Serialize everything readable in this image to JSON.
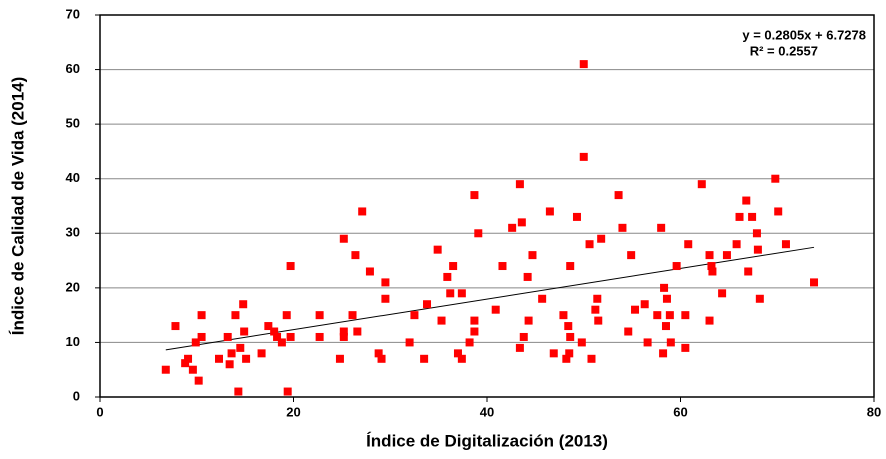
{
  "chart_data": {
    "type": "scatter",
    "xlabel": "Índice de Digitalización (2013)",
    "ylabel": "Índice de Calidad de Vida (2014)",
    "xlim": [
      0,
      80
    ],
    "xticks": [
      0,
      20,
      40,
      60,
      80
    ],
    "ylim": [
      0,
      70
    ],
    "yticks": [
      0,
      10,
      20,
      30,
      40,
      50,
      60,
      70
    ],
    "grid": true,
    "color": "#ff0000",
    "trendline": {
      "equation": "y = 0.2805x + 6.7278",
      "r2": "R² = 0.2557",
      "slope": 0.2805,
      "intercept": 6.7278
    },
    "x": [
      6.8,
      7.8,
      8.8,
      9.1,
      9.6,
      9.9,
      10.2,
      10.5,
      10.5,
      12.3,
      13.2,
      13.4,
      13.6,
      14,
      14.3,
      14.5,
      14.8,
      14.9,
      15.1,
      16.7,
      17.4,
      18,
      18.3,
      18.8,
      19.3,
      19.4,
      19.7,
      19.7,
      22.7,
      22.7,
      24.8,
      25.2,
      25.2,
      25.2,
      26.1,
      26.4,
      26.6,
      27.1,
      27.9,
      28.8,
      29.1,
      29.5,
      29.5,
      32,
      32.5,
      33.5,
      33.8,
      34.9,
      35.3,
      35.9,
      36.2,
      36.5,
      37,
      37.4,
      37.4,
      38.2,
      38.7,
      38.7,
      38.7,
      39.1,
      40.9,
      41.6,
      42.6,
      43.4,
      43.4,
      43.6,
      43.8,
      44.2,
      44.3,
      44.7,
      45.7,
      46.5,
      46.9,
      47.9,
      48.2,
      48.4,
      48.5,
      48.6,
      48.6,
      49.3,
      49.8,
      50,
      50,
      50.6,
      50.8,
      51.2,
      51.4,
      51.5,
      51.8,
      53.6,
      54,
      54.6,
      54.9,
      55.3,
      56.3,
      56.6,
      57.6,
      58,
      58.2,
      58.3,
      58.5,
      58.6,
      58.9,
      59,
      59.6,
      60.5,
      60.5,
      60.8,
      62.2,
      63,
      63,
      63.2,
      63.3,
      64.3,
      64.8,
      65.8,
      66.1,
      66.8,
      67,
      67.4,
      67.9,
      68,
      68.2,
      69.8,
      70.1,
      70.9,
      73.8
    ],
    "values": [
      5,
      13,
      6.2,
      7,
      5,
      10,
      3,
      15,
      11,
      7,
      11,
      6,
      8,
      15,
      1,
      9,
      17,
      12,
      7,
      8,
      13,
      12,
      11,
      10,
      15,
      1,
      24,
      11,
      15,
      11,
      7,
      11,
      12,
      29,
      15,
      26,
      12,
      34,
      23,
      8,
      7,
      21,
      18,
      10,
      15,
      7,
      17,
      27,
      14,
      22,
      19,
      24,
      8,
      7,
      19,
      10,
      12,
      14,
      37,
      30,
      16,
      24,
      31,
      9,
      39,
      32,
      11,
      22,
      14,
      26,
      18,
      34,
      8,
      15,
      7,
      13,
      8,
      24,
      11,
      33,
      10,
      44,
      61,
      28,
      7,
      16,
      18,
      14,
      29,
      37,
      31,
      12,
      26,
      16,
      17,
      10,
      15,
      31,
      8,
      20,
      13,
      18,
      15,
      10,
      24,
      9,
      15,
      28,
      39,
      14,
      26,
      24,
      23,
      19,
      26,
      28,
      33,
      36,
      23,
      33,
      30,
      27,
      18,
      40,
      34,
      28,
      21
    ]
  }
}
